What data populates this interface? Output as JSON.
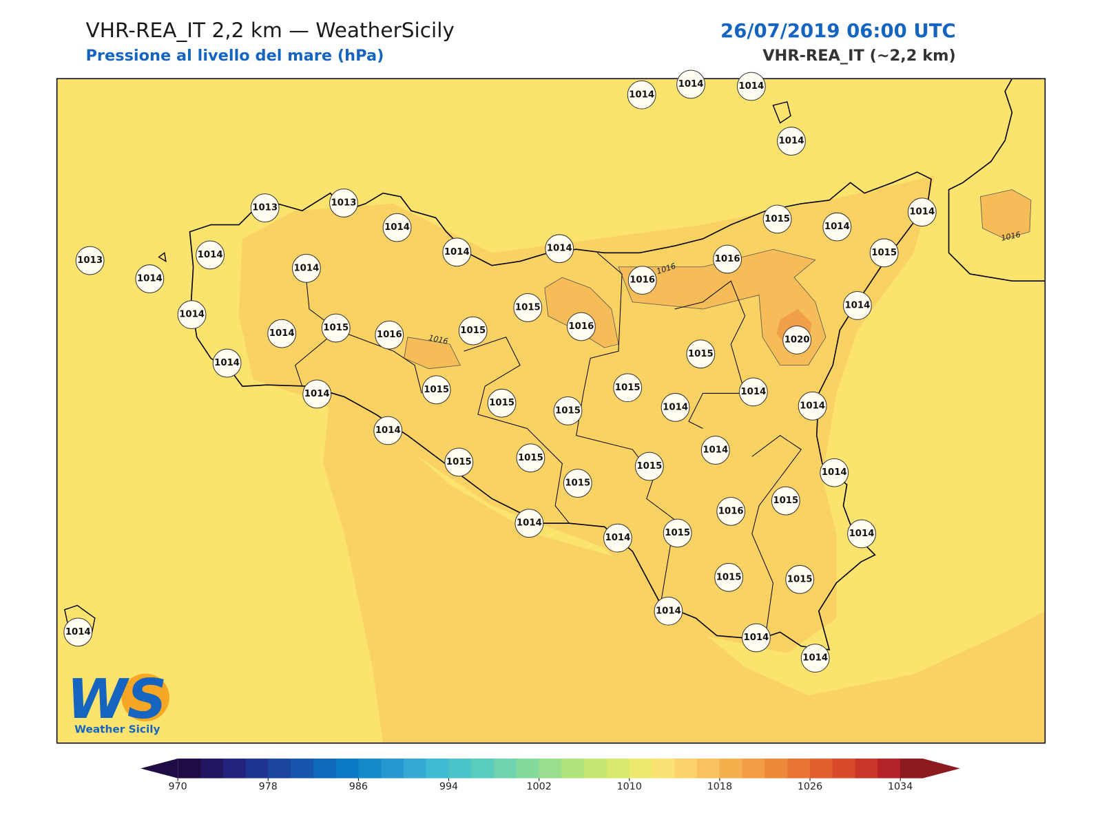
{
  "header": {
    "title": "VHR-REA_IT 2,2 km — WeatherSicily",
    "subtitle": "Pressione al livello del mare (hPa)",
    "datetime": "26/07/2019 06:00 UTC",
    "model": "VHR-REA_IT (~2,2 km)"
  },
  "stations": [
    1014,
    1014,
    1014,
    1014,
    1013,
    1013,
    1014,
    1014,
    1014,
    1015,
    1014,
    1014,
    1015,
    1013,
    1014,
    1014,
    1014,
    1016,
    1016,
    1014,
    1014,
    1014,
    1015,
    1016,
    1015,
    1015,
    1016,
    1020,
    1015,
    1014,
    1014,
    1015,
    1015,
    1015,
    1015,
    1014,
    1014,
    1014,
    1014,
    1015,
    1015,
    1015,
    1015,
    1014,
    1014,
    1016,
    1015,
    1014,
    1014,
    1014,
    1015,
    1015,
    1015,
    1014,
    1014,
    1014,
    1014
  ],
  "contour_labels": [
    "1016",
    "1016",
    "1016"
  ],
  "colorbar": {
    "ticks": [
      970,
      978,
      986,
      994,
      1002,
      1010,
      1018,
      1026,
      1034
    ],
    "colors": [
      "#1e0c45",
      "#221660",
      "#21247a",
      "#1f3590",
      "#1b459f",
      "#1656ad",
      "#0f68b9",
      "#0b78c4",
      "#1488cb",
      "#2598d0",
      "#33a9d3",
      "#3ebbd1",
      "#4ac4c8",
      "#59ccbc",
      "#6fd3ad",
      "#84d99d",
      "#99de8c",
      "#b0e37c",
      "#c6e672",
      "#dbe86e",
      "#ece96f",
      "#fae372",
      "#fbd36a",
      "#f8c25c",
      "#f5b04e",
      "#f29d44",
      "#ee893c",
      "#e97534",
      "#e2602e",
      "#d84b2a",
      "#c93528",
      "#b32226",
      "#8c1a1f"
    ]
  },
  "logo": {
    "mark": "WS",
    "text": "Weather Sicily"
  }
}
